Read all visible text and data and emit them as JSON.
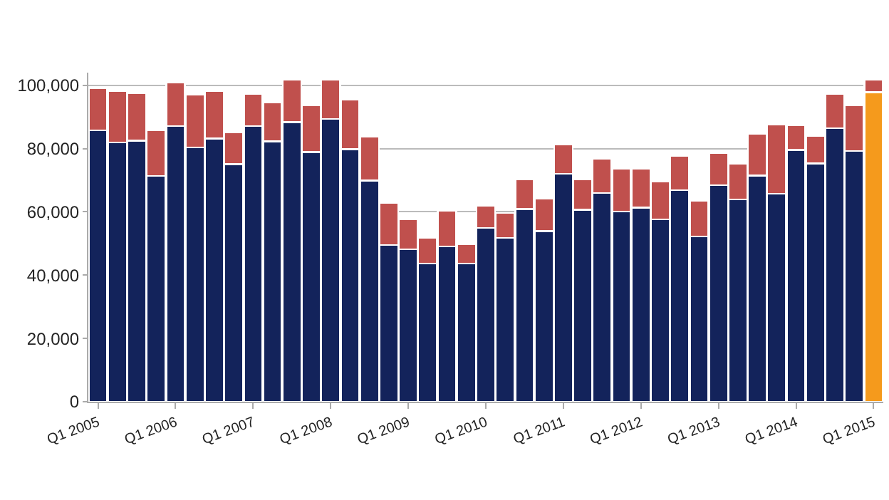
{
  "chart_data": {
    "type": "bar",
    "stacked": true,
    "categories": [
      "Q1 2005",
      null,
      null,
      null,
      "Q1 2006",
      null,
      null,
      null,
      "Q1 2007",
      null,
      null,
      null,
      "Q1 2008",
      null,
      null,
      null,
      "Q1 2009",
      null,
      null,
      null,
      "Q1 2010",
      null,
      null,
      null,
      "Q1 2011",
      null,
      null,
      null,
      "Q1 2012",
      null,
      null,
      null,
      "Q1 2013",
      null,
      null,
      null,
      "Q1 2014",
      null,
      null,
      null,
      "Q1 2015"
    ],
    "series": [
      {
        "color": "#13235b",
        "colors": [
          "#13235b",
          "#13235b",
          "#13235b",
          "#13235b",
          "#13235b",
          "#13235b",
          "#13235b",
          "#13235b",
          "#13235b",
          "#13235b",
          "#13235b",
          "#13235b",
          "#13235b",
          "#13235b",
          "#13235b",
          "#13235b",
          "#13235b",
          "#13235b",
          "#13235b",
          "#13235b",
          "#13235b",
          "#13235b",
          "#13235b",
          "#13235b",
          "#13235b",
          "#13235b",
          "#13235b",
          "#13235b",
          "#13235b",
          "#13235b",
          "#13235b",
          "#13235b",
          "#13235b",
          "#13235b",
          "#13235b",
          "#13235b",
          "#13235b",
          "#13235b",
          "#13235b",
          "#13235b",
          "#f59a1c"
        ],
        "values": [
          85800,
          82000,
          82500,
          71400,
          87100,
          80400,
          83200,
          75100,
          87100,
          82300,
          88400,
          78900,
          89400,
          79800,
          69900,
          49500,
          48200,
          43700,
          49100,
          43700,
          54900,
          51800,
          60900,
          53900,
          72100,
          60700,
          66000,
          60100,
          61300,
          57600,
          66900,
          52200,
          68400,
          63900,
          71500,
          65700,
          79600,
          75300,
          86400,
          79300,
          97800
        ]
      },
      {
        "color": "#c0504d",
        "values": [
          13300,
          16100,
          15100,
          14400,
          13900,
          16700,
          15100,
          10000,
          10200,
          12300,
          13400,
          14700,
          12400,
          15600,
          13900,
          13300,
          9400,
          8200,
          11300,
          6000,
          7000,
          7900,
          9400,
          10300,
          9300,
          9600,
          10800,
          13500,
          12300,
          12000,
          10800,
          11400,
          10300,
          11400,
          13100,
          21900,
          7700,
          8800,
          11000,
          14300,
          4000
        ]
      }
    ],
    "ylim": [
      0,
      104000
    ],
    "yticks": [
      {
        "value": 0,
        "label": "0"
      },
      {
        "value": 20000,
        "label": "20,000"
      },
      {
        "value": 40000,
        "label": "40,000"
      },
      {
        "value": 60000,
        "label": "60,000"
      },
      {
        "value": 80000,
        "label": "80,000"
      },
      {
        "value": 100000,
        "label": "100,000"
      }
    ],
    "grid": "y"
  }
}
